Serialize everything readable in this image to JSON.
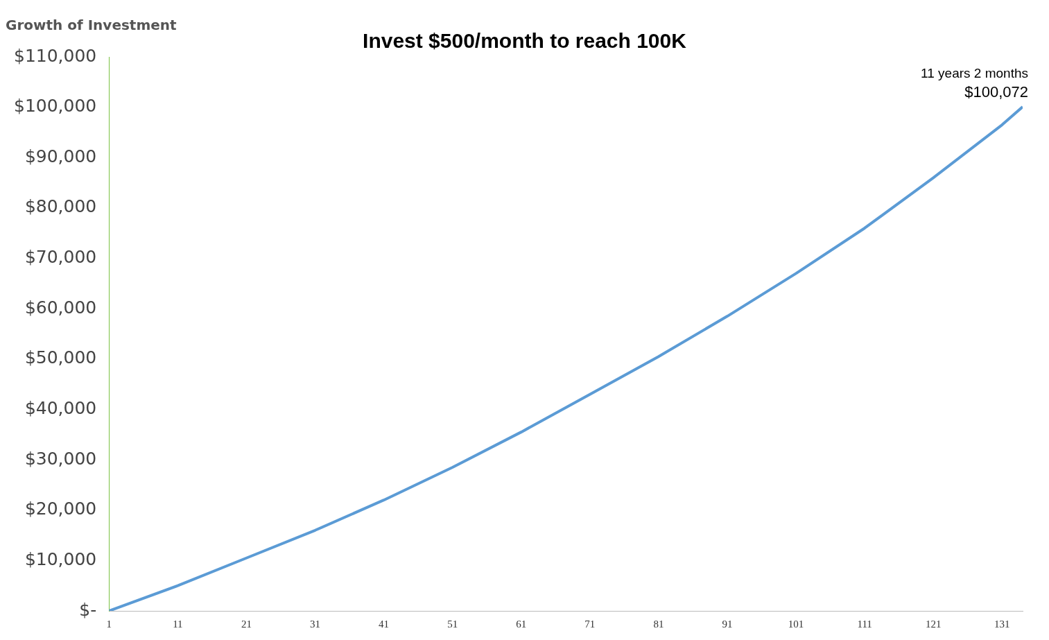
{
  "chart_data": {
    "type": "line",
    "title": "Invest $500/month to reach 100K",
    "ylabel": "Growth of Investment",
    "x": [
      1,
      11,
      21,
      31,
      41,
      51,
      61,
      71,
      81,
      91,
      101,
      111,
      121,
      131,
      134
    ],
    "series": [
      {
        "color": "#5b9bd5",
        "values": [
          0,
          5000,
          10500,
          16000,
          22000,
          28500,
          35500,
          43000,
          50500,
          58500,
          67000,
          76000,
          86000,
          96500,
          100072
        ]
      }
    ],
    "xlim": [
      1,
      134
    ],
    "xticks": [
      1,
      11,
      21,
      31,
      41,
      51,
      61,
      71,
      81,
      91,
      101,
      111,
      121,
      131
    ],
    "ylim": [
      0,
      110000
    ],
    "yticks": [
      {
        "value": 0,
        "label": "$-"
      },
      {
        "value": 10000,
        "label": "$10,000"
      },
      {
        "value": 20000,
        "label": "$20,000"
      },
      {
        "value": 30000,
        "label": "$30,000"
      },
      {
        "value": 40000,
        "label": "$40,000"
      },
      {
        "value": 50000,
        "label": "$50,000"
      },
      {
        "value": 60000,
        "label": "$60,000"
      },
      {
        "value": 70000,
        "label": "$70,000"
      },
      {
        "value": 80000,
        "label": "$80,000"
      },
      {
        "value": 90000,
        "label": "$90,000"
      },
      {
        "value": 100000,
        "label": "$100,000"
      },
      {
        "value": 110000,
        "label": "$110,000"
      }
    ],
    "annotations": [
      {
        "text": "11 years 2 months",
        "x": 134,
        "y": 100072
      },
      {
        "text": "$100,072",
        "x": 134,
        "y": 100072
      }
    ],
    "grid": false,
    "legend": false,
    "marker": "none",
    "line_style": "solid"
  }
}
